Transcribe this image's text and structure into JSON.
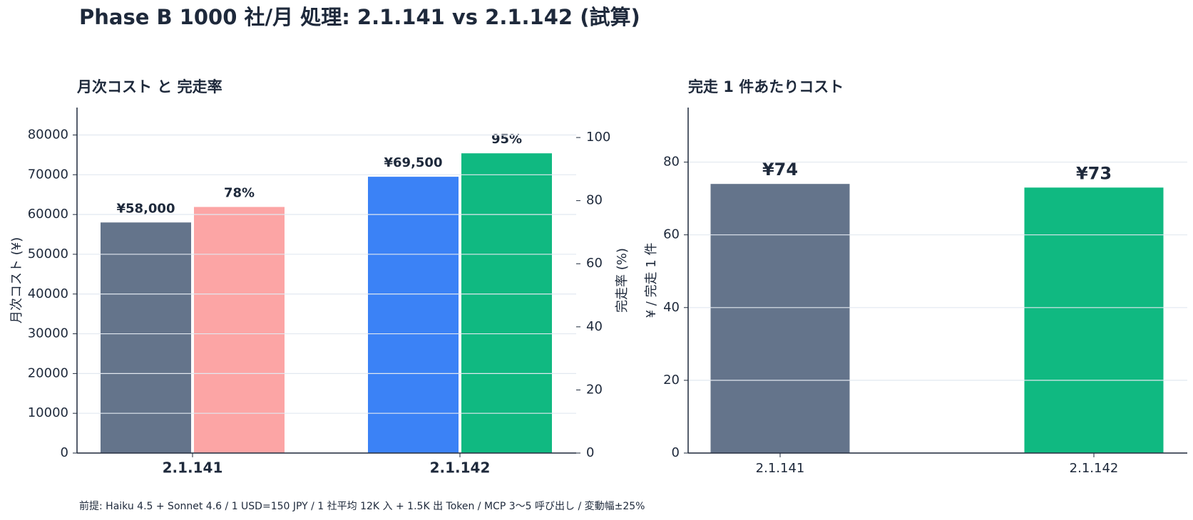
{
  "title": "Phase B 1000 社/月 処理: 2.1.141 vs 2.1.142 (試算)",
  "footnote": "前提: Haiku 4.5 + Sonnet 4.6 / 1 USD=150 JPY / 1 社平均 12K 入 + 1.5K 出 Token / MCP 3〜5 呼び出し / 変動幅±25%",
  "chart_data": [
    {
      "type": "bar",
      "title": "月次コスト と 完走率",
      "categories": [
        "2.1.141",
        "2.1.142"
      ],
      "ylabel": "月次コスト (¥)",
      "y2label": "完走率 (%)",
      "ylim": [
        0,
        86900
      ],
      "yticks": [
        0,
        10000,
        20000,
        30000,
        40000,
        50000,
        60000,
        70000,
        80000
      ],
      "y2lim": [
        0,
        109.5
      ],
      "y2ticks": [
        0,
        20,
        40,
        60,
        80,
        100
      ],
      "grid": true,
      "series": [
        {
          "colors": [
            "#64748b",
            "#3b82f6"
          ],
          "values": [
            58000,
            69500
          ],
          "value_labels": [
            "¥58,000",
            "¥69,500"
          ],
          "label_colors": [
            "#1e293b",
            "#1e293b"
          ]
        },
        {
          "axis": "y2",
          "colors": [
            "#fca5a5",
            "#10b981"
          ],
          "values": [
            78,
            95
          ],
          "value_labels": [
            "78%",
            "95%"
          ],
          "label_colors": [
            "#ef4444",
            "#10b981"
          ]
        }
      ]
    },
    {
      "type": "bar",
      "title": "完走 1 件あたりコスト",
      "categories": [
        "2.1.141",
        "2.1.142"
      ],
      "ylabel": "¥ / 完走 1 件",
      "ylim": [
        0,
        95
      ],
      "yticks": [
        0,
        20,
        40,
        60,
        80
      ],
      "grid": true,
      "series": [
        {
          "colors": [
            "#64748b",
            "#10b981"
          ],
          "values": [
            74,
            73
          ],
          "value_labels": [
            "¥74",
            "¥73"
          ],
          "label_colors": [
            "#1e293b",
            "#1e293b"
          ]
        }
      ]
    }
  ]
}
